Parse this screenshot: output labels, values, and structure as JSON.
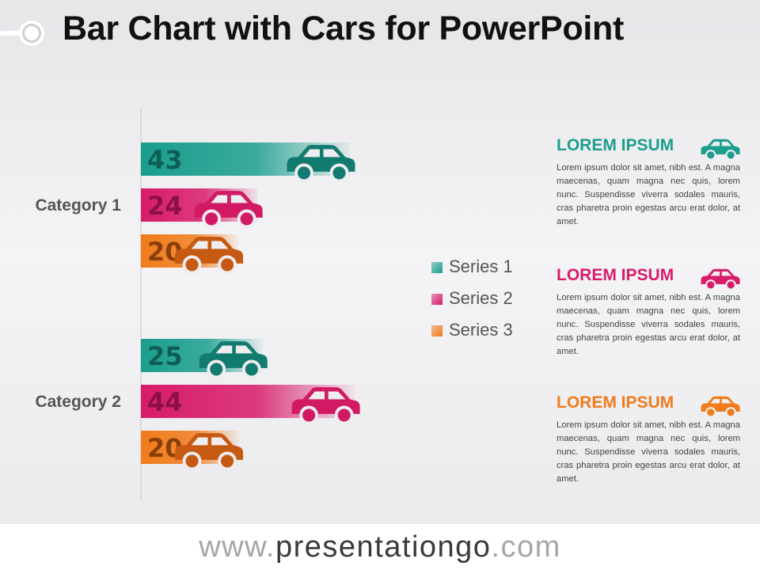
{
  "header": {
    "title": "Bar Chart with Cars for PowerPoint"
  },
  "chart_data": {
    "type": "bar",
    "orientation": "horizontal",
    "categories": [
      "Category 1",
      "Category 2"
    ],
    "series": [
      {
        "name": "Series 1",
        "values": [
          43,
          25
        ],
        "color": "#1a9e8e"
      },
      {
        "name": "Series 2",
        "values": [
          24,
          44
        ],
        "color": "#d81b6a"
      },
      {
        "name": "Series 3",
        "values": [
          20,
          20
        ],
        "color": "#f07b1a"
      }
    ],
    "car_colors": [
      "#127b70",
      "#d11a63",
      "#c75a12"
    ],
    "value_label_colors": [
      "#0e5e55",
      "#8c0f45",
      "#8a3e0a"
    ],
    "legend_position": "right",
    "grid": false
  },
  "panels": [
    {
      "title": "LOREM IPSUM",
      "text": "Lorem ipsum dolor sit amet, nibh est. A magna maecenas, quam magna nec quis, lorem nunc. Suspendisse viverra sodales mauris, cras pharetra proin egestas arcu erat dolor, at amet.",
      "color": "#1a9e8e",
      "icon": "car-icon"
    },
    {
      "title": "LOREM IPSUM",
      "text": "Lorem ipsum dolor sit amet, nibh est. A magna maecenas, quam magna nec quis, lorem nunc. Suspendisse viverra sodales mauris, cras pharetra proin egestas arcu erat dolor, at amet.",
      "color": "#d81b6a",
      "icon": "car-icon"
    },
    {
      "title": "LOREM IPSUM",
      "text": "Lorem ipsum dolor sit amet, nibh est. A magna maecenas, quam magna nec quis, lorem nunc. Suspendisse viverra sodales mauris, cras pharetra proin egestas arcu erat dolor, at amet.",
      "color": "#f07b1a",
      "icon": "car-icon"
    }
  ],
  "footer": {
    "url_prefix": "www.",
    "url_domain": "presentationgo",
    "url_suffix": ".com"
  }
}
